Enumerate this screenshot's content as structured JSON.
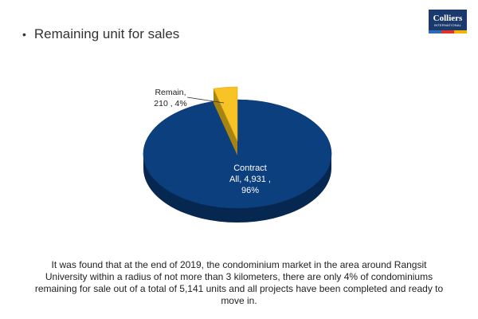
{
  "slide": {
    "bullet": "•",
    "title": "Remaining unit for sales"
  },
  "logo": {
    "name": "Colliers",
    "tagline": "INTERNATIONAL",
    "bg_color": "#1a3a6e",
    "stripe_colors": [
      "#2a6cb8",
      "#e0312b",
      "#f4b400"
    ]
  },
  "chart_data": {
    "type": "pie",
    "style": "3d",
    "title": "",
    "slices": [
      {
        "label": "Contract All",
        "value": 4931,
        "percent": 96,
        "color": "#0c3f7e",
        "side_color": "#06274f",
        "label_lines": [
          "Contract",
          "All,  4,931 ,",
          "96%"
        ]
      },
      {
        "label": "Remain",
        "value": 210,
        "percent": 4,
        "color": "#f7c325",
        "side_color": "#a78312",
        "label_lines": [
          "Remain,",
          "210 , 4%"
        ]
      }
    ],
    "legend": "none"
  },
  "caption": "It was found that at the end of 2019, the condominium market in the area around Rangsit University within a radius of not more than 3 kilometers, there are only 4% of condominiums remaining for sale out of a total of 5,141 units and all projects have been completed and ready to move in."
}
